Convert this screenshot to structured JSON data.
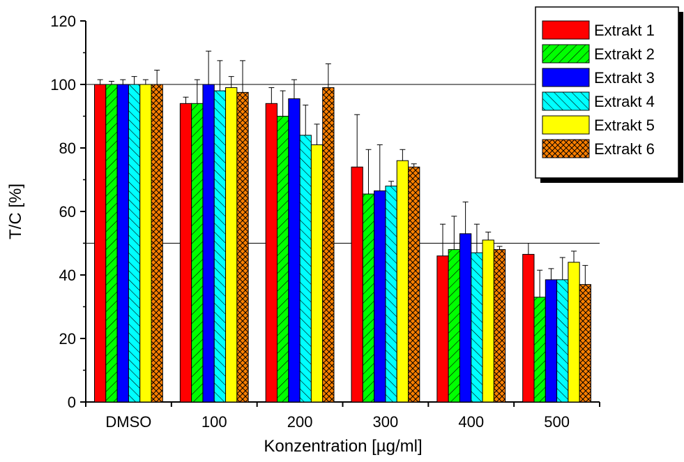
{
  "chart_data": {
    "type": "bar",
    "xlabel": "Konzentration [µg/ml]",
    "ylabel": "T/C [%]",
    "ylim": [
      0,
      120
    ],
    "yticks": [
      "0",
      "20",
      "40",
      "60",
      "80",
      "100",
      "120"
    ],
    "categories": [
      "DMSO",
      "100",
      "200",
      "300",
      "400",
      "500"
    ],
    "reference_lines": [
      100,
      50
    ],
    "legend_position": "top-right",
    "series": [
      {
        "name": "Extrakt 1",
        "color": "#ff0000",
        "pattern": "solid",
        "values": [
          100,
          94,
          94,
          74,
          46,
          46.5
        ],
        "errors": [
          1.5,
          2,
          5,
          16.5,
          10,
          3.5
        ]
      },
      {
        "name": "Extrakt 2",
        "color": "#00ff00",
        "pattern": "diagonal-forward",
        "values": [
          100,
          94,
          90,
          65.5,
          48,
          33
        ],
        "errors": [
          1,
          7.5,
          8,
          14,
          10.5,
          8.5
        ]
      },
      {
        "name": "Extrakt 3",
        "color": "#0000ff",
        "pattern": "solid",
        "values": [
          100,
          100,
          95.5,
          66.5,
          53,
          38.5
        ],
        "errors": [
          1.5,
          10.5,
          6,
          14.5,
          10,
          3.5
        ]
      },
      {
        "name": "Extrakt 4",
        "color": "#00ffff",
        "pattern": "diagonal-back",
        "values": [
          100,
          98,
          84,
          68,
          47,
          38.5
        ],
        "errors": [
          2.5,
          9.5,
          9.5,
          1.5,
          9,
          7
        ]
      },
      {
        "name": "Extrakt 5",
        "color": "#ffff00",
        "pattern": "solid",
        "values": [
          100,
          99,
          81,
          76,
          51,
          44
        ],
        "errors": [
          1.5,
          3.5,
          6.5,
          3.5,
          2.5,
          3.5
        ]
      },
      {
        "name": "Extrakt 6",
        "color": "#ff8000",
        "pattern": "crosshatch",
        "values": [
          100,
          97.5,
          99,
          74,
          48,
          37
        ],
        "errors": [
          4.5,
          10,
          7.5,
          1,
          1,
          6
        ]
      }
    ]
  }
}
